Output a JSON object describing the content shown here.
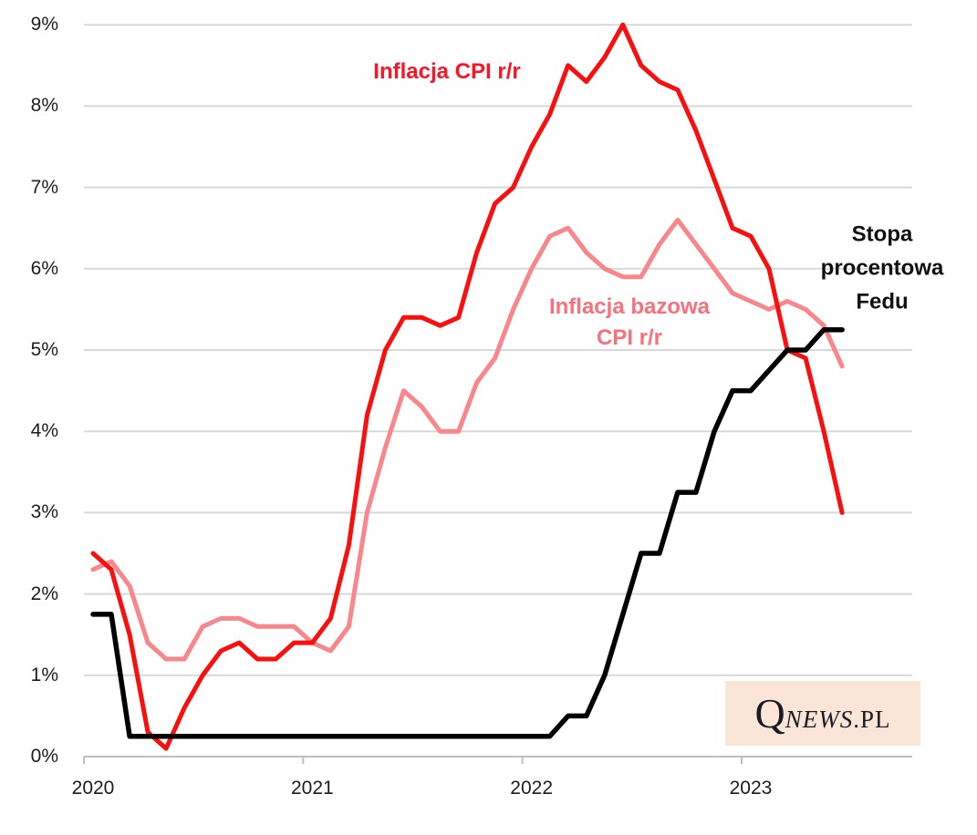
{
  "page": {
    "background": "#ffffff",
    "grid_color": "#d9d9d9",
    "axis_color": "#bfbfbf",
    "axis_text_color": "#1c1c1c"
  },
  "chart_data": {
    "type": "line",
    "title": "",
    "x_range": [
      "2020-01",
      "2023-06"
    ],
    "x_tick_labels": [
      "2020",
      "2021",
      "2022",
      "2023"
    ],
    "y_tick_labels": [
      "0%",
      "1%",
      "2%",
      "3%",
      "4%",
      "5%",
      "6%",
      "7%",
      "8%",
      "9%"
    ],
    "ylim": [
      0,
      9
    ],
    "grid": "horizontal",
    "legend_position": "inline-annotations",
    "series": [
      {
        "id": "core-cpi",
        "name": "Inflacja bazowa CPI r/r",
        "color": "#f9868b",
        "values": [
          2.3,
          2.4,
          2.1,
          1.4,
          1.2,
          1.2,
          1.6,
          1.7,
          1.7,
          1.6,
          1.6,
          1.6,
          1.4,
          1.3,
          1.6,
          3.0,
          3.8,
          4.5,
          4.3,
          4.0,
          4.0,
          4.6,
          4.9,
          5.5,
          6.0,
          6.4,
          6.5,
          6.2,
          6.0,
          5.9,
          5.9,
          6.3,
          6.6,
          6.3,
          6.0,
          5.7,
          5.6,
          5.5,
          5.6,
          5.5,
          5.3,
          4.8
        ]
      },
      {
        "id": "cpi",
        "name": "Inflacja CPI r/r",
        "color": "#fa0f0f",
        "values": [
          2.5,
          2.3,
          1.5,
          0.3,
          0.1,
          0.6,
          1.0,
          1.3,
          1.4,
          1.2,
          1.2,
          1.4,
          1.4,
          1.7,
          2.6,
          4.2,
          5.0,
          5.4,
          5.4,
          5.3,
          5.4,
          6.2,
          6.8,
          7.0,
          7.5,
          7.9,
          8.5,
          8.3,
          8.6,
          9.0,
          8.5,
          8.3,
          8.2,
          7.7,
          7.1,
          6.5,
          6.4,
          6.0,
          5.0,
          4.9,
          4.0,
          3.0
        ]
      },
      {
        "id": "fed-rate",
        "name": "Stopa procentowa Fedu",
        "color": "#000000",
        "values": [
          1.75,
          1.75,
          0.25,
          0.25,
          0.25,
          0.25,
          0.25,
          0.25,
          0.25,
          0.25,
          0.25,
          0.25,
          0.25,
          0.25,
          0.25,
          0.25,
          0.25,
          0.25,
          0.25,
          0.25,
          0.25,
          0.25,
          0.25,
          0.25,
          0.25,
          0.25,
          0.5,
          0.5,
          1.0,
          1.75,
          2.5,
          2.5,
          3.25,
          3.25,
          4.0,
          4.5,
          4.5,
          4.75,
          5.0,
          5.0,
          5.25,
          5.25
        ]
      }
    ],
    "annotations": [
      {
        "id": "cpi",
        "lines": [
          "Inflacja CPI r/r"
        ],
        "color": "#fa1425"
      },
      {
        "id": "core-cpi",
        "lines": [
          "Inflacja bazowa",
          "CPI r/r"
        ],
        "color": "#f8707b"
      },
      {
        "id": "fed-rate",
        "lines": [
          "Stopa",
          "procentowa",
          "Fedu"
        ],
        "color": "#111111"
      }
    ]
  },
  "logo": {
    "q": "Q",
    "news": "NEWS",
    "pl": ".PL",
    "background": "#fbe5d6",
    "text_color": "#1b1b24"
  }
}
